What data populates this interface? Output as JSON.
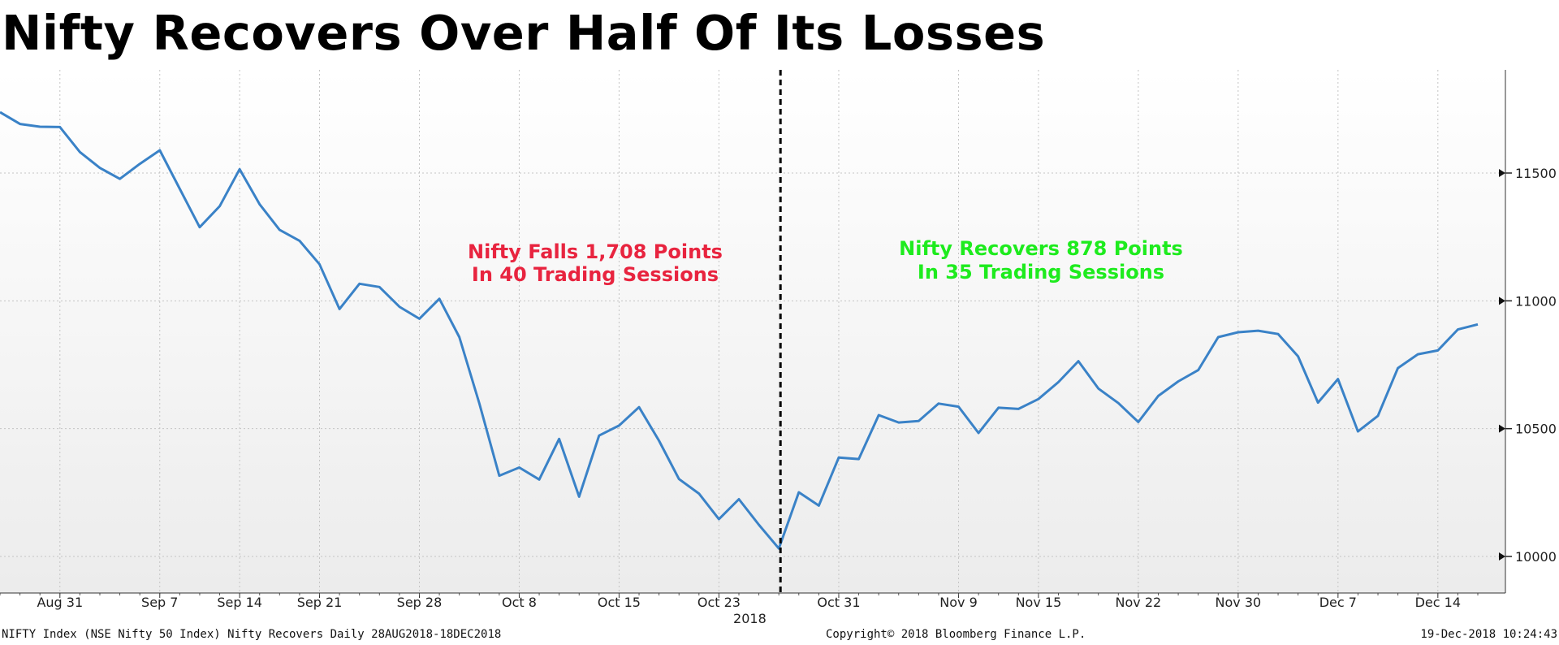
{
  "chart_data": {
    "type": "line",
    "title": "Nifty Recovers Over Half Of Its Losses",
    "x_dates": [
      "Aug 28",
      "Aug 29",
      "Aug 30",
      "Aug 31",
      "Sep 3",
      "Sep 4",
      "Sep 5",
      "Sep 6",
      "Sep 7",
      "Sep 10",
      "Sep 11",
      "Sep 12",
      "Sep 14",
      "Sep 17",
      "Sep 18",
      "Sep 19",
      "Sep 21",
      "Sep 24",
      "Sep 25",
      "Sep 26",
      "Sep 27",
      "Sep 28",
      "Oct 1",
      "Oct 3",
      "Oct 4",
      "Oct 5",
      "Oct 8",
      "Oct 9",
      "Oct 10",
      "Oct 11",
      "Oct 12",
      "Oct 15",
      "Oct 16",
      "Oct 17",
      "Oct 19",
      "Oct 22",
      "Oct 23",
      "Oct 24",
      "Oct 25",
      "Oct 26",
      "Oct 29",
      "Oct 30",
      "Oct 31",
      "Nov 1",
      "Nov 2",
      "Nov 5",
      "Nov 6",
      "Nov 7",
      "Nov 9",
      "Nov 12",
      "Nov 13",
      "Nov 14",
      "Nov 15",
      "Nov 16",
      "Nov 19",
      "Nov 20",
      "Nov 21",
      "Nov 22",
      "Nov 26",
      "Nov 27",
      "Nov 28",
      "Nov 29",
      "Nov 30",
      "Dec 3",
      "Dec 4",
      "Dec 5",
      "Dec 6",
      "Dec 7",
      "Dec 10",
      "Dec 11",
      "Dec 12",
      "Dec 13",
      "Dec 14",
      "Dec 17",
      "Dec 18"
    ],
    "series": [
      {
        "values": [
          11738,
          11692,
          11681,
          11680,
          11582,
          11520,
          11477,
          11536,
          11589,
          11438,
          11288,
          11370,
          11515,
          11378,
          11278,
          11235,
          11143,
          10968,
          11067,
          11054,
          10977,
          10930,
          11008,
          10858,
          10599,
          10316,
          10348,
          10301,
          10460,
          10234,
          10473,
          10512,
          10584,
          10453,
          10303,
          10246,
          10146,
          10224,
          10124,
          10031,
          10251,
          10199,
          10387,
          10381,
          10553,
          10524,
          10530,
          10598,
          10586,
          10483,
          10582,
          10577,
          10616,
          10682,
          10764,
          10657,
          10600,
          10526,
          10628,
          10685,
          10729,
          10858,
          10877,
          10883,
          10870,
          10783,
          10602,
          10694,
          10489,
          10550,
          10737,
          10791,
          10806,
          10888,
          10908
        ]
      }
    ],
    "y_ticks": [
      10000,
      10500,
      11000,
      11500
    ],
    "ylim": [
      9850,
      11880
    ],
    "x_tick_labels": [
      {
        "date": "Aug 31",
        "label": "Aug 31"
      },
      {
        "date": "Sep 7",
        "label": "Sep 7"
      },
      {
        "date": "Sep 14",
        "label": "Sep 14"
      },
      {
        "date": "Sep 21",
        "label": "Sep 21"
      },
      {
        "date": "Sep 28",
        "label": "Sep 28"
      },
      {
        "date": "Oct 8",
        "label": "Oct 8"
      },
      {
        "date": "Oct 15",
        "label": "Oct 15"
      },
      {
        "date": "Oct 23",
        "label": "Oct 23"
      },
      {
        "date": "Oct 31",
        "label": "Oct 31"
      },
      {
        "date": "Nov 9",
        "label": "Nov 9"
      },
      {
        "date": "Nov 15",
        "label": "Nov 15"
      },
      {
        "date": "Nov 22",
        "label": "Nov 22"
      },
      {
        "date": "Nov 30",
        "label": "Nov 30"
      },
      {
        "date": "Dec 7",
        "label": "Dec 7"
      },
      {
        "date": "Dec 14",
        "label": "Dec 14"
      }
    ],
    "year_label": "2018",
    "divider_date": "Oct 26",
    "annotations": [
      {
        "line1": "Nifty Falls 1,708 Points",
        "line2": "In 40 Trading Sessions",
        "color": "#e8243f"
      },
      {
        "line1": "Nifty Recovers 878 Points",
        "line2": "In 35 Trading Sessions",
        "color": "#1eeb1e"
      }
    ],
    "line_color": "#3a82c7",
    "grid": true
  },
  "footer": {
    "left": "NIFTY Index (NSE Nifty 50 Index) Nifty Recovers  Daily 28AUG2018-18DEC2018",
    "center": "Copyright© 2018 Bloomberg Finance L.P.",
    "right": "19-Dec-2018 10:24:43"
  }
}
